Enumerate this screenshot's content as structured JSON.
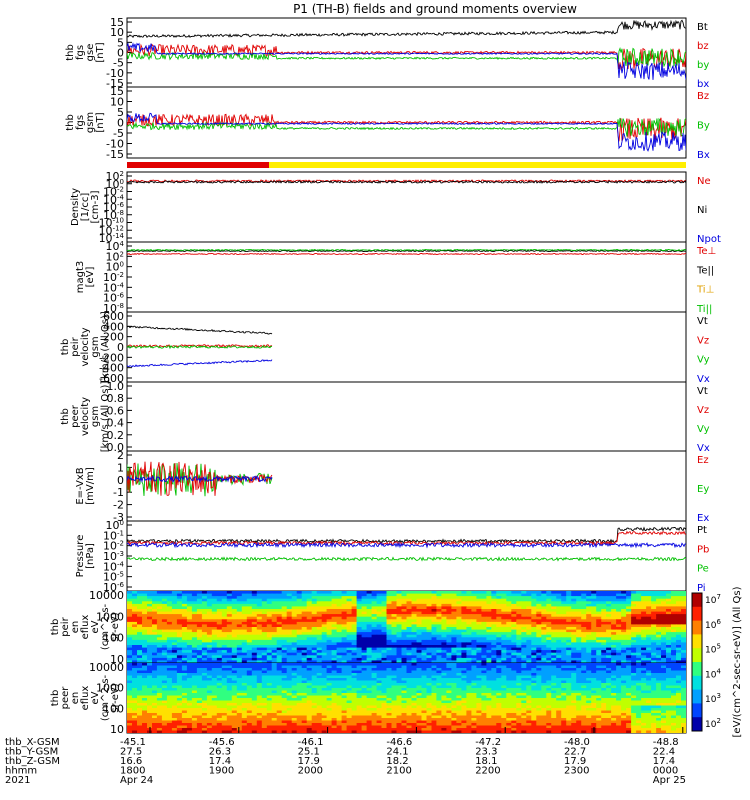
{
  "title": "P1 (TH-B) fields and ground moments overview",
  "chart_data": {
    "type": "line",
    "title": "P1 (TH-B) fields and ground moments overview",
    "x_ticks": [
      "1800",
      "1900",
      "2000",
      "2100",
      "2200",
      "2300",
      "0000"
    ],
    "x_range": [
      "2021-04-24 17:45",
      "2021-04-25 00:15"
    ],
    "rows": [
      {
        "label": "thb_X-GSM",
        "values": [
          "-45.1",
          "-45.6",
          "-46.1",
          "-46.6",
          "-47.2",
          "-48.0",
          "-48.8"
        ]
      },
      {
        "label": "thb_Y-GSM",
        "values": [
          "27.5",
          "26.3",
          "25.1",
          "24.1",
          "23.3",
          "22.7",
          "22.4"
        ]
      },
      {
        "label": "thb_Z-GSM",
        "values": [
          "16.6",
          "17.4",
          "17.9",
          "18.2",
          "18.1",
          "17.9",
          "17.4"
        ]
      },
      {
        "label": "hhmm",
        "values": [
          "1800",
          "1900",
          "2000",
          "2100",
          "2200",
          "2300",
          "0000"
        ]
      }
    ],
    "year_label": "2021",
    "dates": [
      "Apr 24",
      "Apr 25"
    ],
    "spectrogram_colorbar": {
      "label": "[eV/(cm^2-sec-sr-eV)] (All Qs)",
      "ticks": [
        "10^7",
        "10^6",
        "10^5",
        "10^4",
        "10^3",
        "10^2"
      ]
    },
    "panels": [
      {
        "ylabel": [
          "thb",
          "fgs",
          "gse",
          "[nT]"
        ],
        "yticks": [
          "15",
          "10",
          "5",
          "0",
          "-5",
          "-10",
          "-15"
        ],
        "ylim": [
          -15,
          15
        ],
        "legend": [
          {
            "name": "Bt",
            "color": "#000000"
          },
          {
            "name": "bz",
            "color": "#e00000"
          },
          {
            "name": "by",
            "color": "#00c000"
          },
          {
            "name": "bx",
            "color": "#0000e0"
          }
        ]
      },
      {
        "ylabel": [
          "thb",
          "fgs",
          "gsm",
          "[nT]"
        ],
        "yticks": [
          "15",
          "10",
          "5",
          "0",
          "-5",
          "-10",
          "-15"
        ],
        "ylim": [
          -15,
          15
        ],
        "legend": [
          {
            "name": "Bz",
            "color": "#e00000"
          },
          {
            "name": "By",
            "color": "#00c000"
          },
          {
            "name": "Bx",
            "color": "#0000e0"
          }
        ]
      },
      {
        "ylabel": [
          "Density",
          "[1/cc]",
          "[cm-3]"
        ],
        "yticks": [
          "10^2",
          "10^0",
          "10^-2",
          "10^-4",
          "10^-6",
          "10^-8",
          "10^-10",
          "10^-12",
          "10^-14"
        ],
        "legend": [
          {
            "name": "Ne",
            "color": "#e00000"
          },
          {
            "name": "Ni",
            "color": "#000000"
          },
          {
            "name": "Npot",
            "color": "#0000e0"
          }
        ]
      },
      {
        "ylabel": [
          "magt3",
          "[eV]"
        ],
        "yticks": [
          "10^4",
          "10^2",
          "10^0",
          "10^-2",
          "10^-4",
          "10^-6",
          "10^-8"
        ],
        "legend": [
          {
            "name": "Te⊥",
            "color": "#e00000"
          },
          {
            "name": "Te||",
            "color": "#000000"
          },
          {
            "name": "Ti⊥",
            "color": "#e0a000"
          },
          {
            "name": "Ti||",
            "color": "#00c000"
          }
        ]
      },
      {
        "ylabel": [
          "thb",
          "peir",
          "velocity",
          "gsm",
          "[km/s (All Qs)]"
        ],
        "yticks": [
          "600",
          "400",
          "200",
          "0",
          "-200",
          "-400",
          "-600"
        ],
        "ylim": [
          -600,
          600
        ],
        "legend": [
          {
            "name": "Vt",
            "color": "#000000"
          },
          {
            "name": "Vz",
            "color": "#e00000"
          },
          {
            "name": "Vy",
            "color": "#00c000"
          },
          {
            "name": "Vx",
            "color": "#0000e0"
          }
        ]
      },
      {
        "ylabel": [
          "thb",
          "peer",
          "velocity",
          "gsm",
          "[km/s (All Qs)]"
        ],
        "yticks": [
          "1.0",
          "0.8",
          "0.6",
          "0.4",
          "0.2",
          "0.0"
        ],
        "ylim": [
          0,
          1
        ],
        "legend": [
          {
            "name": "Vt",
            "color": "#000000"
          },
          {
            "name": "Vz",
            "color": "#e00000"
          },
          {
            "name": "Vy",
            "color": "#00c000"
          },
          {
            "name": "Vx",
            "color": "#0000e0"
          }
        ]
      },
      {
        "ylabel": [
          "E=-VxB",
          "[mV/m]"
        ],
        "yticks": [
          "2",
          "1",
          "0",
          "-1",
          "-2",
          "-3"
        ],
        "ylim": [
          -3,
          2
        ],
        "legend": [
          {
            "name": "Ez",
            "color": "#e00000"
          },
          {
            "name": "Ey",
            "color": "#00c000"
          },
          {
            "name": "Ex",
            "color": "#0000e0"
          }
        ]
      },
      {
        "ylabel": [
          "Pressure",
          "[nPa]"
        ],
        "yticks": [
          "10^0",
          "10^-1",
          "10^-2",
          "10^-3",
          "10^-4",
          "10^-5",
          "10^-6"
        ],
        "legend": [
          {
            "name": "Pt",
            "color": "#000000"
          },
          {
            "name": "Pb",
            "color": "#e00000"
          },
          {
            "name": "Pe",
            "color": "#00c000"
          },
          {
            "name": "Pi",
            "color": "#0000e0"
          }
        ]
      },
      {
        "ylabel": [
          "thb",
          "peir",
          "en",
          "eflux",
          "eV",
          "(cm^2-s-",
          "sr-eV)"
        ],
        "yticks": [
          "10000",
          "1000",
          "100",
          "10"
        ],
        "type": "heatmap"
      },
      {
        "ylabel": [
          "thb",
          "peer",
          "en",
          "eflux",
          "eV",
          "(cm^2-s-",
          "sr-eV)"
        ],
        "yticks": [
          "10000",
          "1000",
          "100",
          "10"
        ],
        "type": "heatmap"
      }
    ]
  }
}
